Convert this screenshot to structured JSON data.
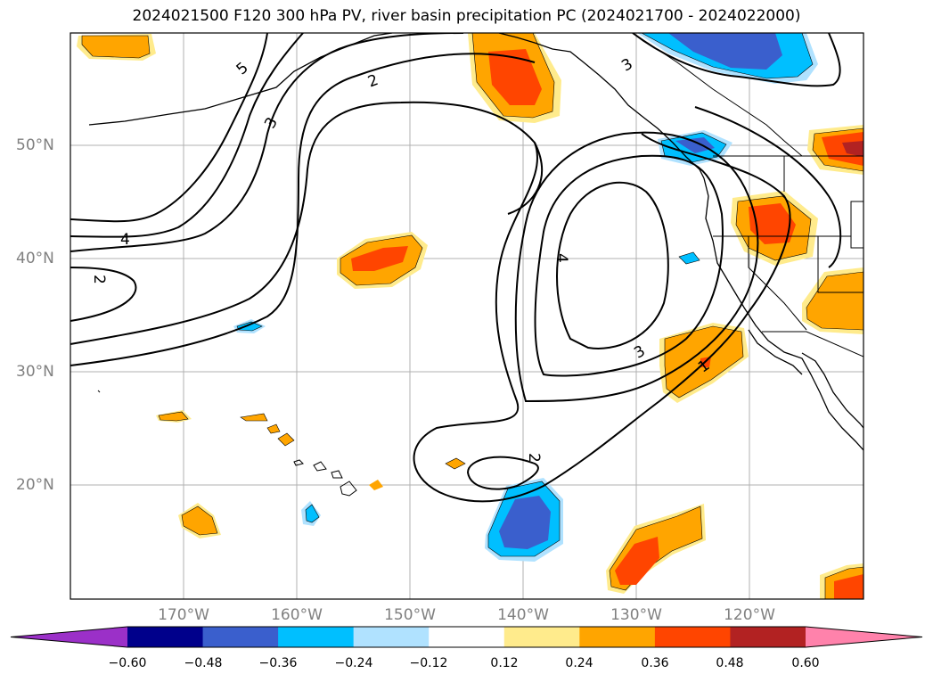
{
  "title": "2024021500 F120 300 hPa PV, river basin precipitation PC (2024021700 - 2024022000)",
  "lat_labels": [
    "50°N",
    "40°N",
    "30°N",
    "20°N"
  ],
  "lon_labels": [
    "170°W",
    "160°W",
    "150°W",
    "140°W",
    "130°W",
    "120°W"
  ],
  "contour_labels": [
    "5",
    "3",
    "2",
    "4",
    "2",
    "4",
    "3",
    "1",
    "2",
    "3"
  ],
  "colorbar": {
    "ticks": [
      "−0.60",
      "−0.48",
      "−0.36",
      "−0.24",
      "−0.12",
      "0.12",
      "0.24",
      "0.36",
      "0.48",
      "0.60"
    ],
    "colors": [
      "#9b30c8",
      "#00008b",
      "#3a5fcd",
      "#00bfff",
      "#b0e2ff",
      "#ffffff",
      "#ffeb8c",
      "#ffa500",
      "#ff4500",
      "#b22222",
      "#ff82ab"
    ]
  },
  "colors": {
    "grid": "#b0b0b0",
    "contour": "#000000",
    "axis_label": "#808080"
  }
}
